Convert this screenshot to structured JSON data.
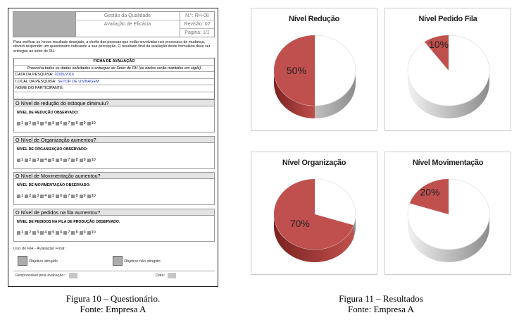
{
  "form": {
    "header": {
      "title": "Gestão da Qualidade",
      "subtitle": "Avaliação de Eficácia",
      "doc_number": "N.º: RH-08",
      "revision": "Revisão: 02",
      "page": "Página: 1/1"
    },
    "intro": "Para verificar se houve resultado desejado, a chefia das pessoas que estão envolvidas nos processos de mudança, deverá responder um questionário indicando a sua percepção. O resultado final da avaliação deste formulário deve ser entregue ao setor de RH.",
    "ficha": {
      "title": "FICHA DE AVALIAÇÃO",
      "instructions": "Preencha todos os dados solicitados e entregue ao Setor de RH (os dados serão mantidos em sigilo)",
      "date_label": "DATA DA PESQUISA:",
      "date_value": "02/05/2016",
      "local_label": "LOCAL DA PESQUISA:",
      "local_value": "SETOR DE USINAGEM",
      "name_label": "NOME DO PARTICIPANTE:"
    },
    "questions": [
      {
        "question": "O Nível de redução do estoque diminuiu?",
        "label": "NÍVEL DE REDUÇÃO OBSERVADO:"
      },
      {
        "question": "O Nível de Organização aumentou?",
        "label": "NÍVEL DE ORGANIZAÇÃO OBSERVADO:"
      },
      {
        "question": "O Nível de Movimentação aumentou?",
        "label": "NÍVEL DE MOVIMENTAÇÃO OBSERVADO:"
      },
      {
        "question": "O Nível de pedidos na fila aumentou?",
        "label": "NÍVEL DE PEDIDOS NA FILA DE PRODUÇÃO OBSERVADO:"
      }
    ],
    "scale": [
      "1",
      "2",
      "3",
      "4",
      "5",
      "6",
      "7",
      "8",
      "9",
      "10"
    ],
    "footer": {
      "uso": "Uso do RH - Avaliação Final:",
      "achieved": "Objetivo atingido",
      "not_achieved": "Objetivo não atingido",
      "responsible": "Responsável pela avaliação:",
      "date": "Data:"
    }
  },
  "captions": {
    "fig10": "Figura 10 – Questionário.",
    "fig10_source": "Fonte: Empresa A",
    "fig11": "Figura 11 – Resultados",
    "fig11_source": "Fonte: Empresa A"
  },
  "colors": {
    "slice": "#c0504d",
    "slice_dark": "#7a2220",
    "rest": "#ffffff",
    "rest_side": "#8c8c8c"
  },
  "chart_data": [
    {
      "type": "pie",
      "title": "Nível Redução",
      "slices": [
        {
          "value": 50,
          "label": "50%"
        },
        {
          "value": 50,
          "label": ""
        }
      ]
    },
    {
      "type": "pie",
      "title": "Nível Pedido Fila",
      "slices": [
        {
          "value": 10,
          "label": "10%"
        },
        {
          "value": 90,
          "label": ""
        }
      ]
    },
    {
      "type": "pie",
      "title": "Nível Organização",
      "slices": [
        {
          "value": 70,
          "label": "70%"
        },
        {
          "value": 30,
          "label": ""
        }
      ]
    },
    {
      "type": "pie",
      "title": "Nível Movimentação",
      "slices": [
        {
          "value": 20,
          "label": "20%"
        },
        {
          "value": 80,
          "label": ""
        }
      ]
    }
  ]
}
